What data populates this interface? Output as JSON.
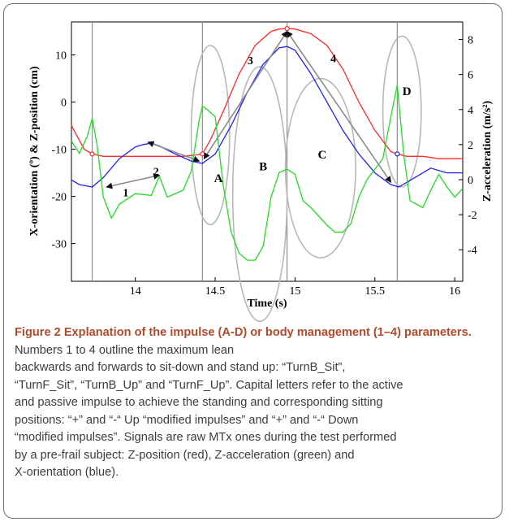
{
  "chart_data": {
    "type": "line",
    "xlabel": "Time (s)",
    "ylabel": "X-orientation (º) & Z-position (cm)",
    "ylabel2": "Z-acceleration (m/s²)",
    "xlim": [
      13.6,
      16.05
    ],
    "ylim": [
      -38,
      17
    ],
    "ylim2": [
      -5.8,
      9.0
    ],
    "x_ticks": [
      "14",
      "14.5",
      "15",
      "15.5",
      "16"
    ],
    "y_ticks": [
      "10",
      "0",
      "-10",
      "-20",
      "-30"
    ],
    "y2_ticks": [
      "8",
      "6",
      "4",
      "2",
      "0",
      "-2",
      "-4"
    ],
    "vertical_lines": [
      13.73,
      14.42,
      14.95,
      15.64
    ],
    "series": [
      {
        "color": "#ff2a2a",
        "axis": "left",
        "x": [
          13.6,
          13.68,
          13.73,
          13.8,
          13.9,
          14.0,
          14.1,
          14.2,
          14.3,
          14.38,
          14.42,
          14.47,
          14.55,
          14.65,
          14.75,
          14.85,
          14.9,
          14.95,
          15.0,
          15.1,
          15.2,
          15.3,
          15.4,
          15.5,
          15.6,
          15.64,
          15.7,
          15.8,
          15.9,
          16.0,
          16.05
        ],
        "y": [
          -5,
          -10,
          -11,
          -11.5,
          -11.5,
          -11.5,
          -11.5,
          -11.5,
          -11.5,
          -11.2,
          -11,
          -8,
          -2,
          6,
          12,
          15,
          15.5,
          15.6,
          15.5,
          14.5,
          12,
          7,
          0,
          -6,
          -10.5,
          -11,
          -11.5,
          -11.5,
          -12,
          -12,
          -12
        ]
      },
      {
        "color": "#2222ee",
        "axis": "left",
        "x": [
          13.6,
          13.65,
          13.73,
          13.8,
          13.9,
          14.0,
          14.05,
          14.1,
          14.15,
          14.25,
          14.35,
          14.42,
          14.5,
          14.6,
          14.7,
          14.8,
          14.9,
          14.95,
          15.0,
          15.1,
          15.2,
          15.3,
          15.4,
          15.5,
          15.6,
          15.65,
          15.75,
          15.85,
          15.95,
          16.05
        ],
        "y": [
          -16.5,
          -17.5,
          -18,
          -16,
          -12,
          -9.5,
          -9,
          -8.7,
          -9.3,
          -11,
          -12.5,
          -13,
          -11,
          -5,
          2,
          8,
          11.5,
          11.8,
          11,
          6,
          0,
          -6,
          -11,
          -15,
          -17.5,
          -18,
          -16,
          -14,
          -15,
          -15
        ]
      },
      {
        "color": "#22dd22",
        "axis": "right",
        "x": [
          13.6,
          13.65,
          13.7,
          13.73,
          13.76,
          13.8,
          13.85,
          13.9,
          14.0,
          14.1,
          14.15,
          14.2,
          14.3,
          14.35,
          14.4,
          14.42,
          14.45,
          14.5,
          14.55,
          14.6,
          14.65,
          14.7,
          14.75,
          14.8,
          14.85,
          14.9,
          14.95,
          15.0,
          15.05,
          15.1,
          15.2,
          15.25,
          15.3,
          15.35,
          15.4,
          15.45,
          15.5,
          15.55,
          15.6,
          15.64,
          15.68,
          15.72,
          15.8,
          15.85,
          15.9,
          15.95,
          16.0,
          16.05
        ],
        "y": [
          2.2,
          1.5,
          2.5,
          3.5,
          2.0,
          -1.0,
          -2.2,
          -1.4,
          -0.8,
          -0.9,
          0.2,
          -1.0,
          -0.6,
          0.5,
          3.4,
          4.2,
          4.0,
          3.6,
          -0.3,
          -3.0,
          -4.2,
          -4.6,
          -4.6,
          -3.8,
          -1.0,
          0.4,
          0.6,
          0.3,
          -1.2,
          -1.6,
          -2.6,
          -3.0,
          -3.0,
          -2.5,
          -1.0,
          0.0,
          0.6,
          1.2,
          3.6,
          5.4,
          1.5,
          -1.2,
          -1.6,
          -0.6,
          0.3,
          -0.4,
          -1.0,
          -0.5
        ]
      }
    ],
    "ellipse_labels": [
      "A",
      "B",
      "C",
      "D"
    ],
    "arrow_labels": [
      "1",
      "2",
      "3",
      "4"
    ]
  },
  "caption": {
    "title": "Figure 2 Explanation of the impulse (A-D) or body management (1–4) parameters.",
    "lines": [
      " Numbers 1 to 4 outline the maximum lean",
      "backwards and forwards to sit-down and stand up: “TurnB_Sit”,",
      "“TurnF_Sit”, “TurnB_Up” and “TurnF_Up”. Capital letters refer to the active",
      "and passive impulse to achieve the standing and corresponding sitting",
      "positions: “+” and “-“ Up “modified impulses” and “+” and “-“ Down",
      "“modified impulses”. Signals are raw MTx ones during the test performed",
      "by a pre-frail subject: Z-position (red), Z-acceleration (green) and",
      "X-orientation (blue)."
    ]
  }
}
